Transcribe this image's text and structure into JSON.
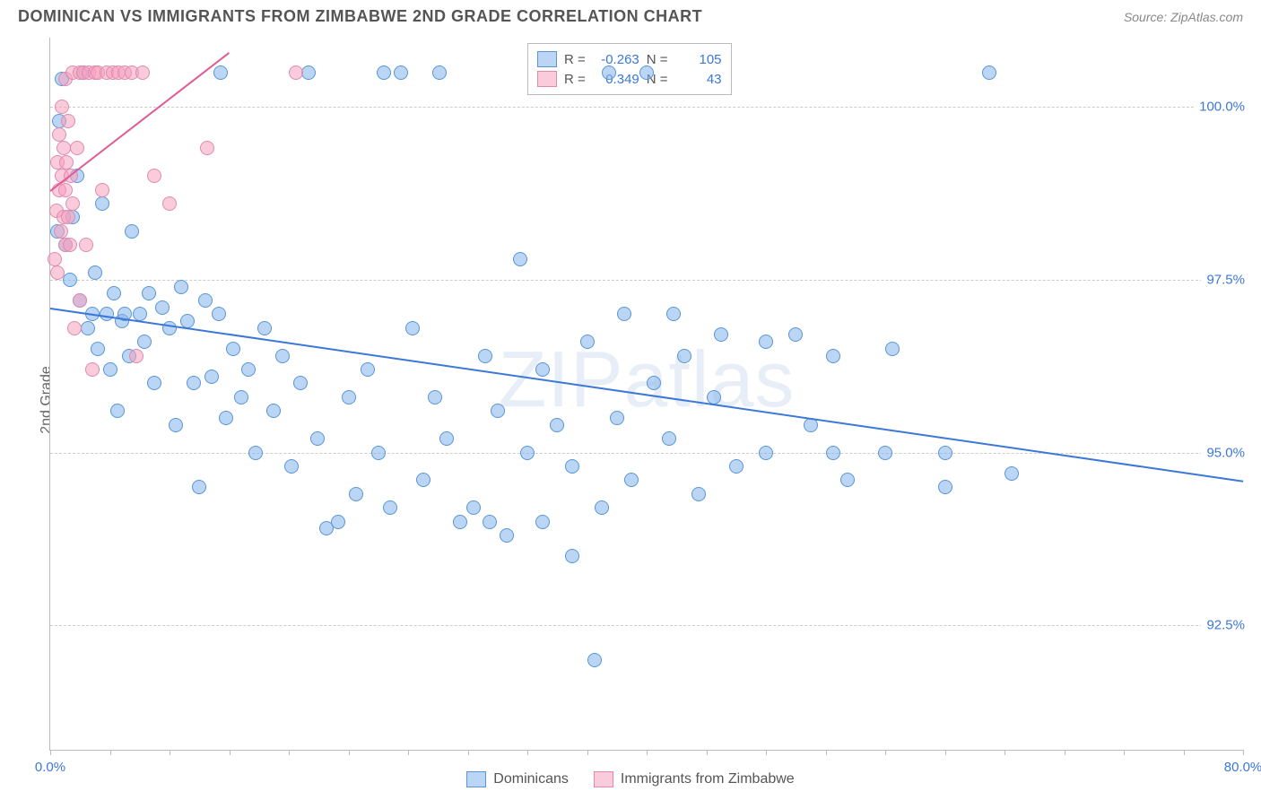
{
  "header": {
    "title": "DOMINICAN VS IMMIGRANTS FROM ZIMBABWE 2ND GRADE CORRELATION CHART",
    "source": "Source: ZipAtlas.com"
  },
  "watermark": "ZIPatlas",
  "chart": {
    "type": "scatter",
    "ylabel": "2nd Grade",
    "xlim": [
      0,
      80
    ],
    "ylim": [
      90.7,
      101.0
    ],
    "yticks": [
      {
        "value": 92.5,
        "label": "92.5%"
      },
      {
        "value": 95.0,
        "label": "95.0%"
      },
      {
        "value": 97.5,
        "label": "97.5%"
      },
      {
        "value": 100.0,
        "label": "100.0%"
      }
    ],
    "xticks": [
      {
        "value": 0,
        "label": "0.0%"
      },
      {
        "value": 80,
        "label": "80.0%"
      }
    ],
    "xminor_step": 4,
    "grid_color": "#cccccc",
    "axis_color": "#bbbbbb",
    "background_color": "#ffffff",
    "marker_size": 16,
    "series": [
      {
        "name": "Dominicans",
        "color_fill": "rgba(130,180,235,0.55)",
        "color_stroke": "#5a95d6",
        "R": "-0.263",
        "N": "105",
        "trend": {
          "x1": 0,
          "y1": 97.1,
          "x2": 80,
          "y2": 94.6,
          "color": "#3b78d8",
          "width": 2
        },
        "points": [
          [
            0.5,
            98.2
          ],
          [
            0.6,
            99.8
          ],
          [
            0.8,
            100.4
          ],
          [
            1.0,
            98.0
          ],
          [
            1.3,
            97.5
          ],
          [
            1.5,
            98.4
          ],
          [
            1.8,
            99.0
          ],
          [
            2.0,
            97.2
          ],
          [
            2.2,
            100.5
          ],
          [
            2.5,
            96.8
          ],
          [
            2.8,
            97.0
          ],
          [
            3.0,
            97.6
          ],
          [
            3.2,
            96.5
          ],
          [
            3.5,
            98.6
          ],
          [
            3.8,
            97.0
          ],
          [
            4.0,
            96.2
          ],
          [
            4.3,
            97.3
          ],
          [
            4.5,
            95.6
          ],
          [
            4.8,
            96.9
          ],
          [
            5.0,
            97.0
          ],
          [
            5.3,
            96.4
          ],
          [
            5.5,
            98.2
          ],
          [
            6.0,
            97.0
          ],
          [
            6.3,
            96.6
          ],
          [
            6.6,
            97.3
          ],
          [
            7.0,
            96.0
          ],
          [
            7.5,
            97.1
          ],
          [
            8.0,
            96.8
          ],
          [
            8.4,
            95.4
          ],
          [
            8.8,
            97.4
          ],
          [
            9.2,
            96.9
          ],
          [
            9.6,
            96.0
          ],
          [
            10.0,
            94.5
          ],
          [
            10.4,
            97.2
          ],
          [
            10.8,
            96.1
          ],
          [
            11.3,
            97.0
          ],
          [
            11.4,
            100.5
          ],
          [
            11.8,
            95.5
          ],
          [
            12.3,
            96.5
          ],
          [
            12.8,
            95.8
          ],
          [
            13.3,
            96.2
          ],
          [
            13.8,
            95.0
          ],
          [
            14.4,
            96.8
          ],
          [
            15.0,
            95.6
          ],
          [
            15.6,
            96.4
          ],
          [
            16.2,
            94.8
          ],
          [
            16.8,
            96.0
          ],
          [
            17.3,
            100.5
          ],
          [
            17.9,
            95.2
          ],
          [
            18.5,
            93.9
          ],
          [
            19.3,
            94.0
          ],
          [
            20.0,
            95.8
          ],
          [
            20.5,
            94.4
          ],
          [
            21.3,
            96.2
          ],
          [
            22.0,
            95.0
          ],
          [
            22.4,
            100.5
          ],
          [
            22.8,
            94.2
          ],
          [
            23.5,
            100.5
          ],
          [
            24.3,
            96.8
          ],
          [
            25.0,
            94.6
          ],
          [
            25.8,
            95.8
          ],
          [
            26.1,
            100.5
          ],
          [
            26.6,
            95.2
          ],
          [
            27.5,
            94.0
          ],
          [
            28.4,
            94.2
          ],
          [
            29.2,
            96.4
          ],
          [
            29.5,
            94.0
          ],
          [
            30.0,
            95.6
          ],
          [
            30.6,
            93.8
          ],
          [
            31.5,
            97.8
          ],
          [
            32.0,
            95.0
          ],
          [
            33.0,
            96.2
          ],
          [
            33.0,
            94.0
          ],
          [
            34.0,
            95.4
          ],
          [
            35.0,
            94.8
          ],
          [
            35.0,
            93.5
          ],
          [
            36.0,
            96.6
          ],
          [
            36.5,
            92.0
          ],
          [
            37.0,
            94.2
          ],
          [
            37.5,
            100.5
          ],
          [
            38.0,
            95.5
          ],
          [
            38.5,
            97.0
          ],
          [
            39.0,
            94.6
          ],
          [
            40.0,
            100.5
          ],
          [
            40.5,
            96.0
          ],
          [
            41.5,
            95.2
          ],
          [
            41.8,
            97.0
          ],
          [
            42.5,
            96.4
          ],
          [
            43.5,
            94.4
          ],
          [
            44.5,
            95.8
          ],
          [
            45.0,
            96.7
          ],
          [
            46.0,
            94.8
          ],
          [
            48.0,
            95.0
          ],
          [
            48.0,
            96.6
          ],
          [
            50.0,
            96.7
          ],
          [
            51.0,
            95.4
          ],
          [
            52.5,
            95.0
          ],
          [
            52.5,
            96.4
          ],
          [
            53.5,
            94.6
          ],
          [
            56.0,
            95.0
          ],
          [
            56.5,
            96.5
          ],
          [
            60.0,
            95.0
          ],
          [
            60.0,
            94.5
          ],
          [
            63.0,
            100.5
          ],
          [
            64.5,
            94.7
          ]
        ]
      },
      {
        "name": "Immigrants from Zimbabwe",
        "color_fill": "rgba(245,160,190,0.55)",
        "color_stroke": "#e08aaf",
        "R": "0.349",
        "N": "43",
        "trend": {
          "x1": 0,
          "y1": 98.8,
          "x2": 12,
          "y2": 100.8,
          "color": "#e05a93",
          "width": 2
        },
        "points": [
          [
            0.3,
            97.8
          ],
          [
            0.4,
            98.5
          ],
          [
            0.5,
            99.2
          ],
          [
            0.5,
            97.6
          ],
          [
            0.6,
            98.8
          ],
          [
            0.6,
            99.6
          ],
          [
            0.7,
            98.2
          ],
          [
            0.8,
            99.0
          ],
          [
            0.8,
            100.0
          ],
          [
            0.9,
            98.4
          ],
          [
            0.9,
            99.4
          ],
          [
            1.0,
            98.0
          ],
          [
            1.0,
            98.8
          ],
          [
            1.0,
            100.4
          ],
          [
            1.1,
            99.2
          ],
          [
            1.2,
            98.4
          ],
          [
            1.2,
            99.8
          ],
          [
            1.3,
            98.0
          ],
          [
            1.4,
            99.0
          ],
          [
            1.5,
            100.5
          ],
          [
            1.5,
            98.6
          ],
          [
            1.6,
            96.8
          ],
          [
            1.8,
            99.4
          ],
          [
            2.0,
            100.5
          ],
          [
            2.0,
            97.2
          ],
          [
            2.2,
            100.5
          ],
          [
            2.4,
            98.0
          ],
          [
            2.6,
            100.5
          ],
          [
            2.8,
            96.2
          ],
          [
            3.0,
            100.5
          ],
          [
            3.2,
            100.5
          ],
          [
            3.5,
            98.8
          ],
          [
            3.8,
            100.5
          ],
          [
            4.2,
            100.5
          ],
          [
            4.6,
            100.5
          ],
          [
            5.0,
            100.5
          ],
          [
            5.5,
            100.5
          ],
          [
            5.8,
            96.4
          ],
          [
            6.2,
            100.5
          ],
          [
            7.0,
            99.0
          ],
          [
            8.0,
            98.6
          ],
          [
            10.5,
            99.4
          ],
          [
            16.5,
            100.5
          ]
        ]
      }
    ]
  },
  "legend_top": {
    "r_label": "R =",
    "n_label": "N ="
  },
  "legend_bottom": {
    "items": [
      "Dominicans",
      "Immigrants from Zimbabwe"
    ]
  }
}
